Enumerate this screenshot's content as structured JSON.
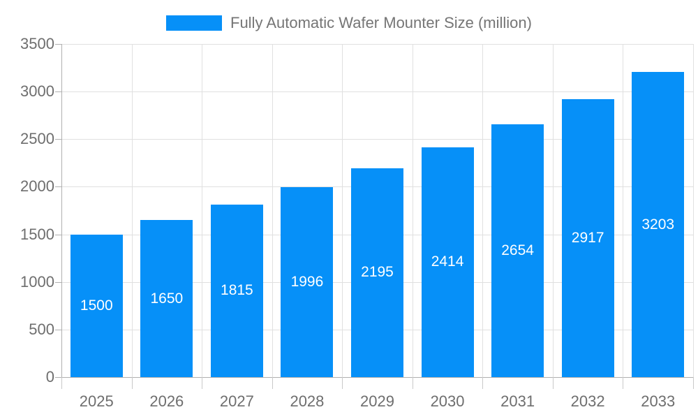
{
  "chart_data": {
    "type": "bar",
    "title": "Fully Automatic Wafer Mounter Size (million)",
    "categories": [
      "2025",
      "2026",
      "2027",
      "2028",
      "2029",
      "2030",
      "2031",
      "2032",
      "2033"
    ],
    "values": [
      1500,
      1650,
      1815,
      1996,
      2195,
      2414,
      2654,
      2917,
      3203
    ],
    "series_name": "Fully Automatic Wafer Mounter Size (million)",
    "xlabel": "",
    "ylabel": "",
    "ylim": [
      0,
      3500
    ],
    "yticks": [
      0,
      500,
      1000,
      1500,
      2000,
      2500,
      3000,
      3500
    ],
    "grid": true,
    "legend_position": "top",
    "bar_labels_visible": true,
    "colors": {
      "bar": "#0690f8",
      "bar_label_text": "#ffffff",
      "axis_text": "#6e6e6e",
      "legend_text": "#757575",
      "gridline": "#e0e0e0",
      "axis_line": "#b0b0b0",
      "background": "#ffffff"
    }
  }
}
